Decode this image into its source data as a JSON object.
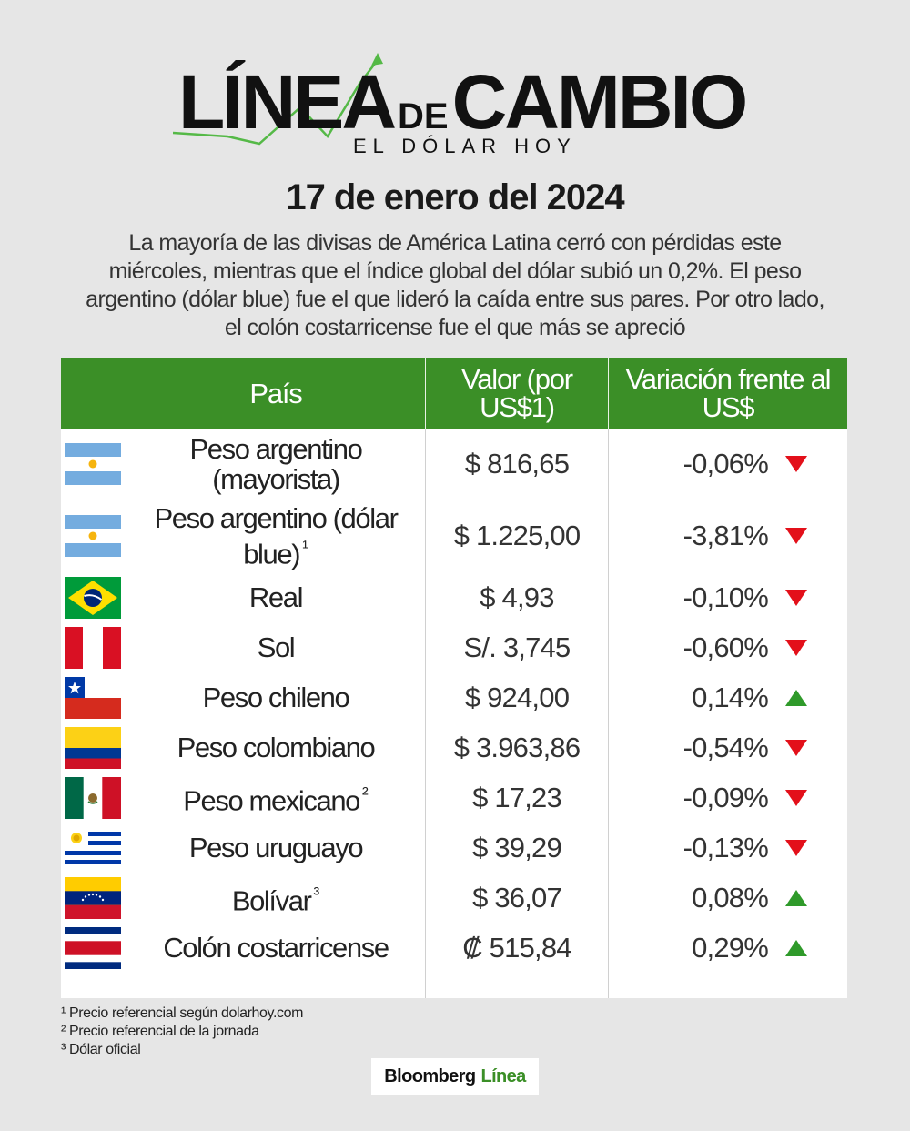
{
  "logo": {
    "title_part1": "LÍNEA",
    "title_part2": "DE",
    "title_part3": "CAMBIO",
    "subtitle": "EL DÓLAR HOY"
  },
  "date": "17 de enero del 2024",
  "intro": "La mayoría de las divisas de América Latina cerró con pérdidas este miércoles, mientras que el índice global del dólar subió un 0,2%. El peso argentino (dólar blue) fue el que lideró la caída entre sus pares. Por otro lado, el colón costarricense fue el que más se apreció",
  "table": {
    "headers": {
      "country": "País",
      "value": "Valor (por US$1)",
      "change": "Variación frente al US$"
    },
    "rows": [
      {
        "flag": "argentina-flag",
        "country": "Peso argentino (mayorista)",
        "footnote": "",
        "value": "$ 816,65",
        "change": "-0,06%",
        "direction": "down"
      },
      {
        "flag": "argentina-flag",
        "country": "Peso argentino (dólar blue)",
        "footnote": "¹",
        "value": "$ 1.225,00",
        "change": "-3,81%",
        "direction": "down"
      },
      {
        "flag": "brazil-flag",
        "country": "Real",
        "footnote": "",
        "value": "$ 4,93",
        "change": "-0,10%",
        "direction": "down"
      },
      {
        "flag": "peru-flag",
        "country": "Sol",
        "footnote": "",
        "value": "S/. 3,745",
        "change": "-0,60%",
        "direction": "down"
      },
      {
        "flag": "chile-flag",
        "country": "Peso chileno",
        "footnote": "",
        "value": "$ 924,00",
        "change": "0,14%",
        "direction": "up"
      },
      {
        "flag": "colombia-flag",
        "country": "Peso colombiano",
        "footnote": "",
        "value": "$ 3.963,86",
        "change": "-0,54%",
        "direction": "down"
      },
      {
        "flag": "mexico-flag",
        "country": "Peso mexicano",
        "footnote": "²",
        "value": "$ 17,23",
        "change": "-0,09%",
        "direction": "down"
      },
      {
        "flag": "uruguay-flag",
        "country": "Peso uruguayo",
        "footnote": "",
        "value": "$ 39,29",
        "change": "-0,13%",
        "direction": "down"
      },
      {
        "flag": "venezuela-flag",
        "country": "Bolívar",
        "footnote": "³",
        "value": "$ 36,07",
        "change": "0,08%",
        "direction": "up"
      },
      {
        "flag": "costa-rica-flag",
        "country": "Colón costarricense",
        "footnote": "",
        "value": "₡ 515,84",
        "change": "0,29%",
        "direction": "up"
      }
    ]
  },
  "footnotes": [
    "¹ Precio referencial según dolarhoy.com",
    "² Precio referencial de la jornada",
    "³ Dólar oficial"
  ],
  "brand": {
    "name": "Bloomberg",
    "accent": "Línea"
  },
  "colors": {
    "background": "#e6e6e6",
    "header_green": "#3b8f27",
    "down_red": "#e3101a",
    "up_green": "#2f9a2a"
  }
}
